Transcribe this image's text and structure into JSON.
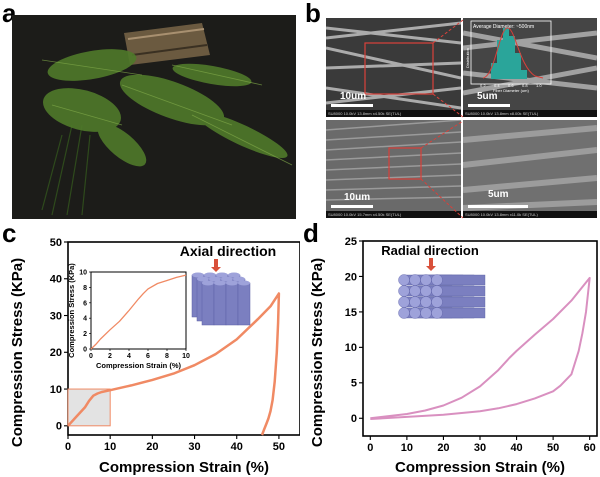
{
  "panels": {
    "a": "a",
    "b": "b",
    "c": "c",
    "d": "d"
  },
  "sem": {
    "scale_top_left": "10um",
    "scale_top_right": "5um",
    "scale_bottom_left": "10um",
    "scale_bottom_right": "5um",
    "info_top_left": "SU8000 10.0kV 13.8mm x4.50k SE(TUL)",
    "info_top_right": "SU8000 10.0kV 13.8mm x8.00k SE(TUL)",
    "info_bottom_left": "SU8000 10.0kV 15.7mm x4.50k SE(TUL)",
    "info_bottom_right": "SU8000 10.0kV 13.8mm x11.0k SE(TUL)",
    "histogram_title": "Average Diameter: ~500nm",
    "histogram_xlabel": "Fiber Diameter (um)",
    "histogram_ylabel": "Distribution",
    "histogram_ticks": [
      "0.2",
      "0.4",
      "0.6",
      "0.8",
      "1.0"
    ],
    "box_color": "#d9403a"
  },
  "chart_data": [
    {
      "type": "line",
      "panel": "c",
      "annotation": "Axial direction",
      "xlabel": "Compression Strain (%)",
      "ylabel": "Compression Stress (KPa)",
      "xlim": [
        0,
        55
      ],
      "ylim": [
        -2.5,
        50
      ],
      "xticks": [
        0,
        10,
        20,
        30,
        40,
        50
      ],
      "yticks": [
        0,
        10,
        20,
        30,
        40,
        50
      ],
      "color": "#f08a64",
      "series": [
        {
          "x": [
            0,
            2,
            4,
            5,
            6,
            7,
            8,
            10,
            15,
            20,
            25,
            30,
            35,
            40,
            45,
            48,
            50,
            49.8,
            49.5,
            49,
            48.5,
            48,
            47.5,
            47,
            46.5,
            46
          ],
          "y": [
            0,
            2.5,
            5,
            6.8,
            8.2,
            8.8,
            9.2,
            9.7,
            11,
            12.5,
            14.2,
            16.5,
            19.5,
            23.5,
            29,
            32.5,
            36,
            28,
            20,
            12,
            7,
            4,
            2,
            0.5,
            -1,
            -2.5
          ]
        }
      ],
      "highlight_box": {
        "x": [
          0,
          10
        ],
        "y": [
          0,
          10
        ]
      },
      "inset": {
        "xlabel": "Compression Strain (%)",
        "ylabel": "Compression Stress (KPa)",
        "xlim": [
          0,
          10
        ],
        "ylim": [
          0,
          10
        ],
        "xticks": [
          0,
          2,
          4,
          6,
          8,
          10
        ],
        "yticks": [
          0,
          2,
          4,
          6,
          8,
          10
        ],
        "series": [
          {
            "x": [
              0,
              0.5,
              1,
              2,
              3,
              4,
              5,
              5.5,
              6,
              7,
              8,
              9,
              10
            ],
            "y": [
              0,
              0.6,
              1.3,
              2.5,
              3.6,
              5,
              6.5,
              7.2,
              7.8,
              8.5,
              8.9,
              9.3,
              9.6
            ]
          }
        ]
      }
    },
    {
      "type": "line",
      "panel": "d",
      "annotation": "Radial direction",
      "xlabel": "Compression Strain (%)",
      "ylabel": "Compression Stress (KPa)",
      "xlim": [
        -2,
        62
      ],
      "ylim": [
        -2.5,
        25
      ],
      "xticks": [
        0,
        10,
        20,
        30,
        40,
        50,
        60
      ],
      "yticks": [
        0,
        5,
        10,
        15,
        20,
        25
      ],
      "color": "#d990c0",
      "series": [
        {
          "x": [
            0,
            5,
            10,
            15,
            20,
            25,
            30,
            35,
            38,
            40,
            45,
            50,
            55,
            60,
            59,
            58,
            57,
            55,
            52,
            50,
            45,
            40,
            35,
            30,
            20,
            10,
            0
          ],
          "y": [
            0,
            0.3,
            0.6,
            1.1,
            1.8,
            2.9,
            4.5,
            6.8,
            8.5,
            9.5,
            11.8,
            14,
            16.6,
            19.8,
            15,
            12,
            9.5,
            6.2,
            4.6,
            3.8,
            2.8,
            2,
            1.4,
            1,
            0.5,
            0.2,
            -0.1
          ]
        }
      ]
    }
  ]
}
